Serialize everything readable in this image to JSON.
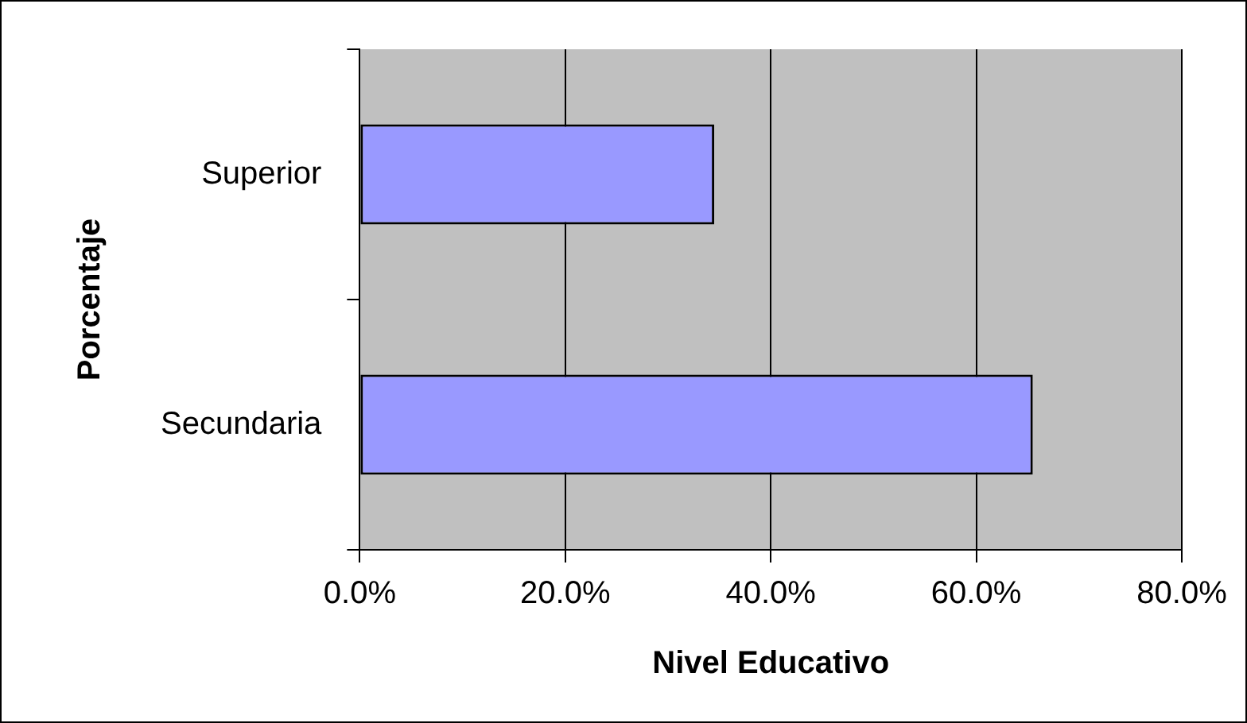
{
  "chart_data": {
    "type": "bar",
    "orientation": "horizontal",
    "categories": [
      "Superior",
      "Secundaria"
    ],
    "values": [
      34.5,
      65.5
    ],
    "color": "#9999ff",
    "xlim": [
      0,
      80
    ],
    "xticks": [
      {
        "value": 0,
        "label": "0.0%"
      },
      {
        "value": 20,
        "label": "20.0%"
      },
      {
        "value": 40,
        "label": "40.0%"
      },
      {
        "value": 60,
        "label": "60.0%"
      },
      {
        "value": 80,
        "label": "80.0%"
      }
    ],
    "xlabel": "Nivel Educativo",
    "ylabel": "Porcentaje",
    "grid": "x",
    "legend": false
  }
}
